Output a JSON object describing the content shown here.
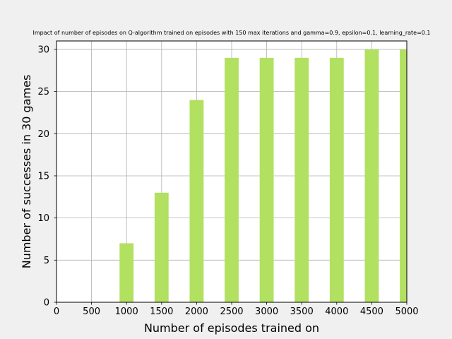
{
  "chart_data": {
    "type": "bar",
    "title": "Impact of number of episodes on Q-algorithm trained on episodes with 150 max iterations and gamma=0.9, epsilon=0.1, learning_rate=0.1",
    "xlabel": "Number of episodes trained on",
    "ylabel": "Number of successes in 30 games",
    "x": [
      1000,
      1500,
      2000,
      2500,
      3000,
      3500,
      4000,
      4500,
      5000
    ],
    "values": [
      7,
      13,
      24,
      29,
      29,
      29,
      29,
      30,
      30
    ],
    "xlim": [
      0,
      5000
    ],
    "ylim": [
      0,
      31
    ],
    "xticks": [
      0,
      500,
      1000,
      1500,
      2000,
      2500,
      3000,
      3500,
      4000,
      4500,
      5000
    ],
    "yticks": [
      0,
      5,
      10,
      15,
      20,
      25,
      30
    ],
    "bar_width": 200,
    "grid": true,
    "colors": {
      "bar": "#b2e061",
      "grid": "#b0b0b0",
      "axes_bg": "#ffffff",
      "figure_bg": "#f0f0f0"
    }
  }
}
